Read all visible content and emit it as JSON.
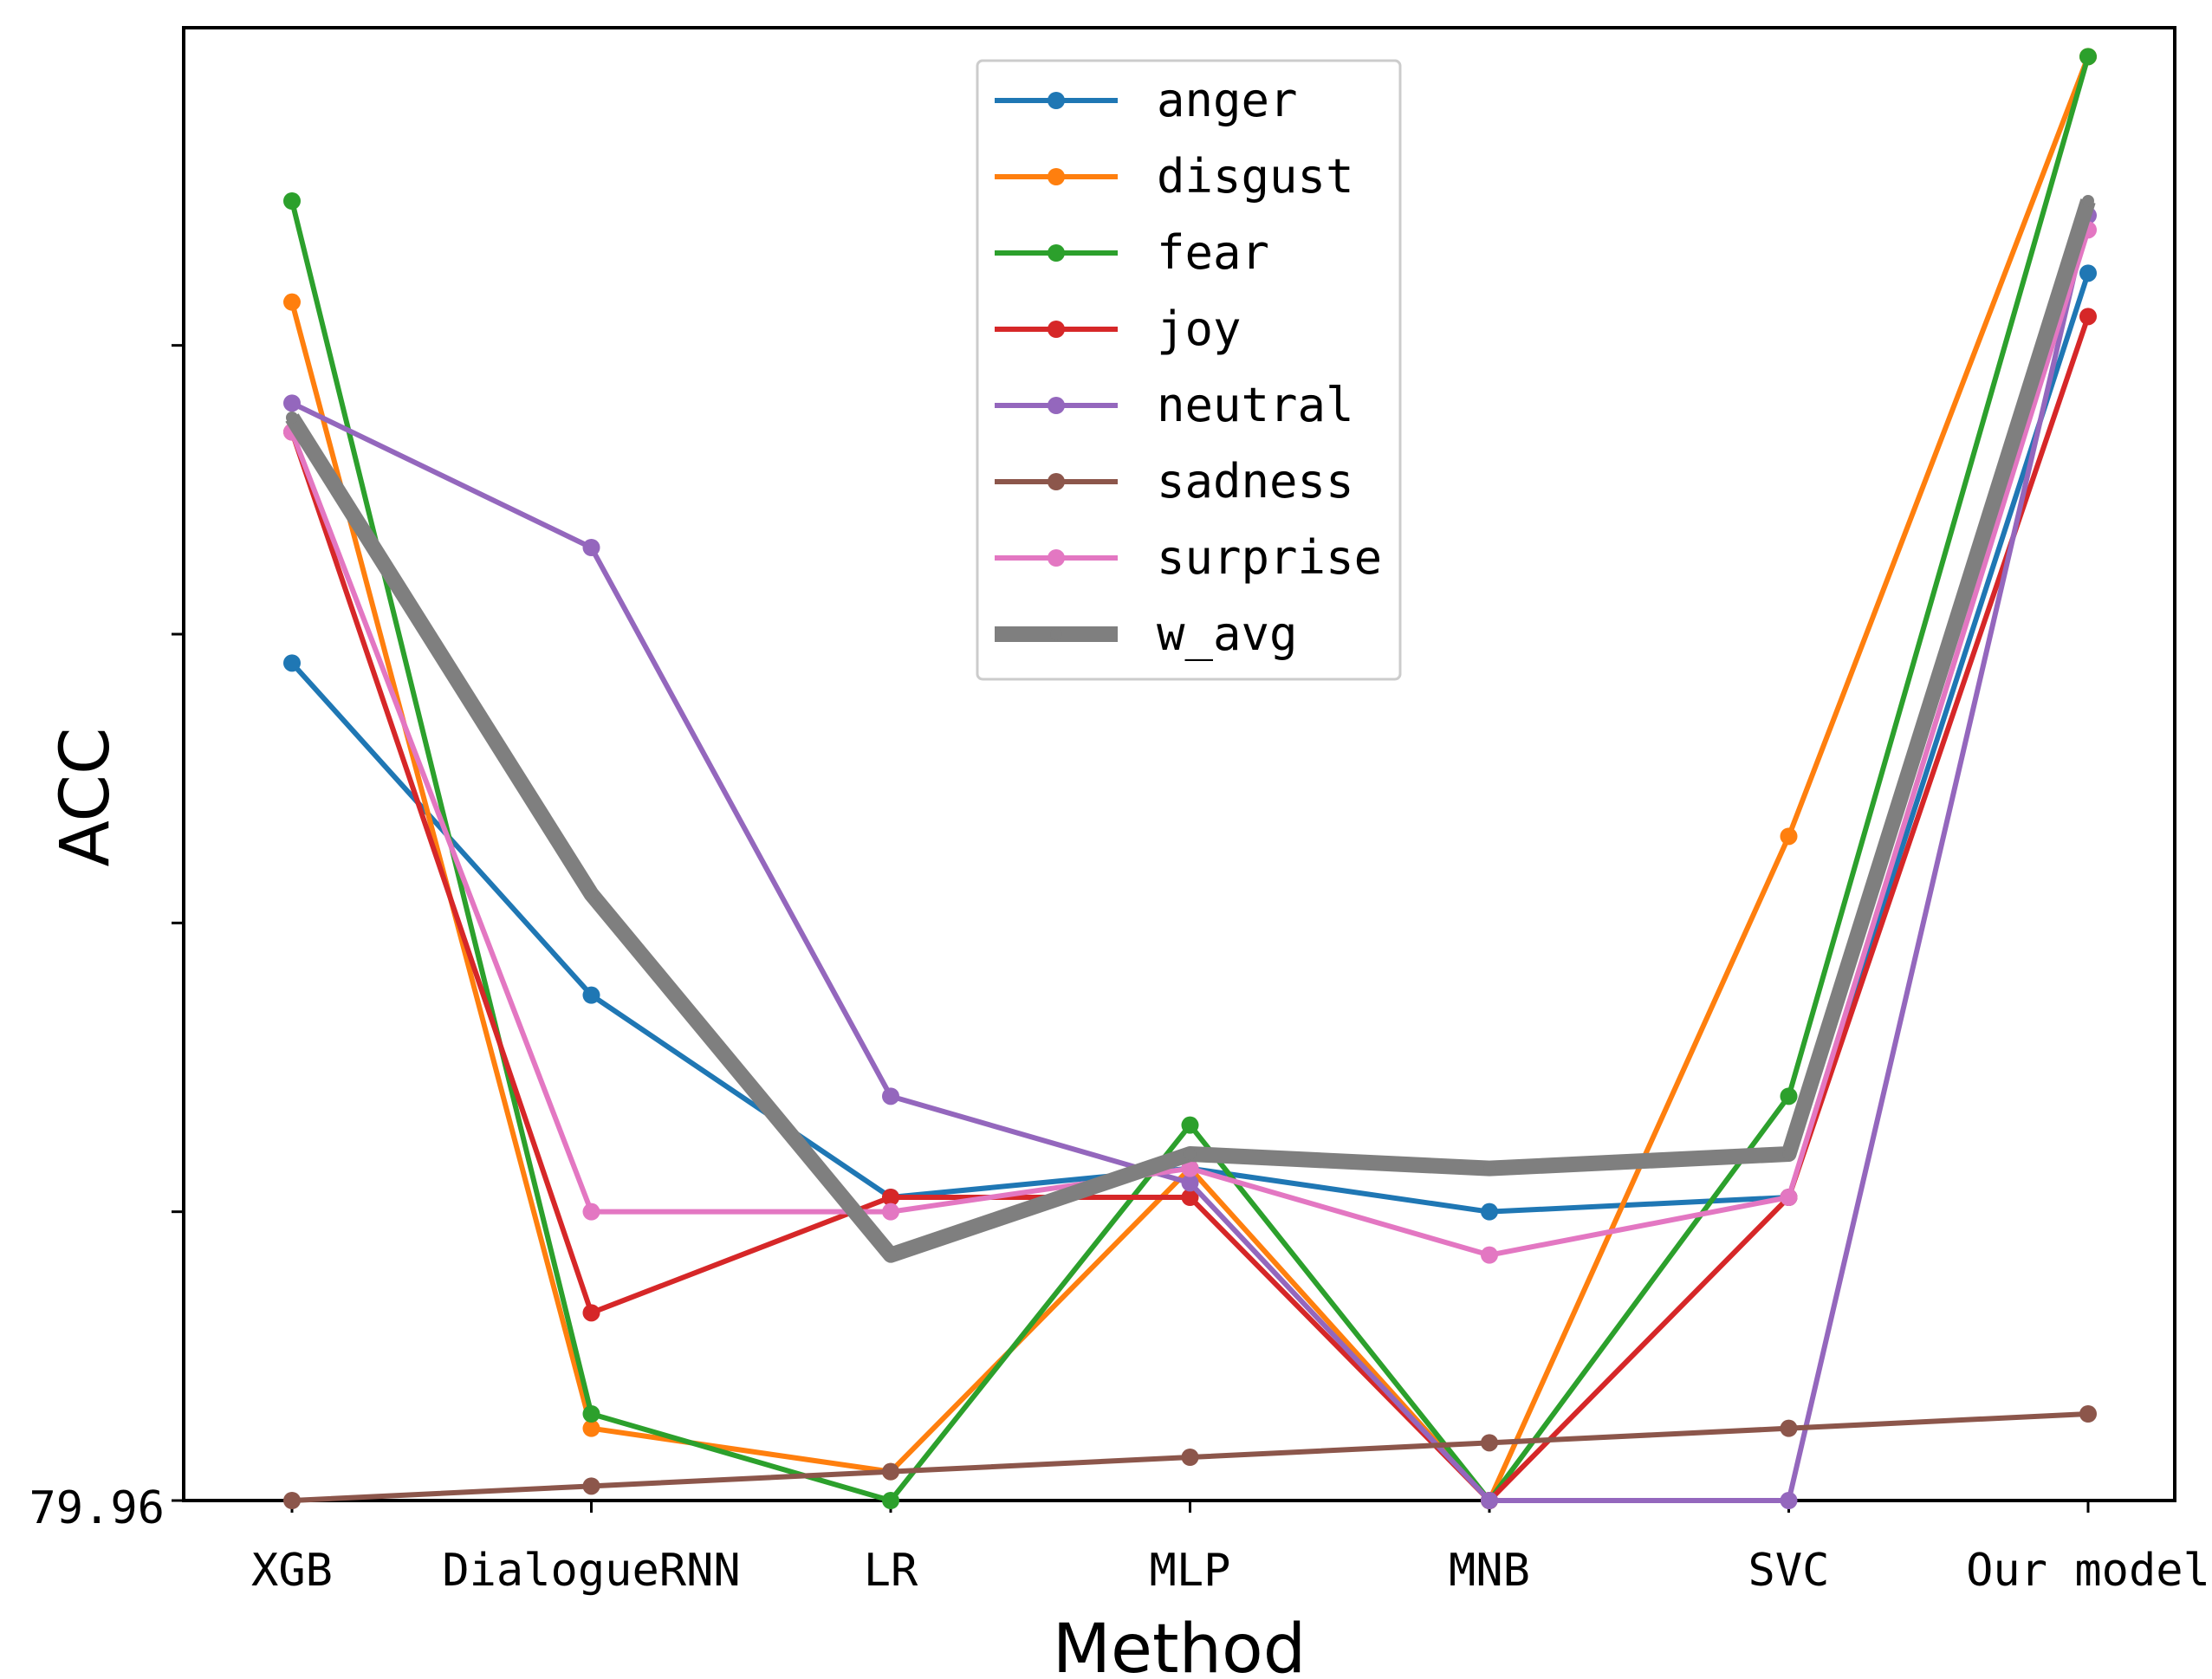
{
  "chart_data": {
    "type": "line",
    "title": "",
    "xlabel": "Method",
    "ylabel": "ACC",
    "categories": [
      "XGB",
      "DialogueRNN",
      "LR",
      "MLP",
      "MNB",
      "SVC",
      "Our model"
    ],
    "ylim": [
      79.96,
      80.98
    ],
    "y_tick_labels": [
      {
        "value": 79.96,
        "label": "79.96"
      }
    ],
    "y_ticks_unlabeled": [
      80.16,
      80.36,
      80.56,
      80.76
    ],
    "legend": {
      "placement": "top-center",
      "entries": [
        "anger",
        "disgust",
        "fear",
        "joy",
        "neutral",
        "sadness",
        "surprise",
        "w_avg"
      ]
    },
    "series": [
      {
        "name": "anger",
        "color": "#1f77b4",
        "values": [
          80.54,
          80.31,
          80.17,
          80.19,
          80.16,
          80.17,
          80.81
        ]
      },
      {
        "name": "disgust",
        "color": "#ff7f0e",
        "values": [
          80.79,
          80.01,
          79.98,
          80.19,
          79.96,
          80.42,
          80.96
        ]
      },
      {
        "name": "fear",
        "color": "#2ca02c",
        "values": [
          80.86,
          80.02,
          79.96,
          80.22,
          79.96,
          80.24,
          80.96
        ]
      },
      {
        "name": "joy",
        "color": "#d62728",
        "values": [
          80.7,
          80.09,
          80.17,
          80.17,
          79.96,
          80.17,
          80.78
        ]
      },
      {
        "name": "neutral",
        "color": "#9467bd",
        "values": [
          80.72,
          80.62,
          80.24,
          80.18,
          79.96,
          79.96,
          80.85
        ]
      },
      {
        "name": "sadness",
        "color": "#8c564b",
        "values": [
          79.96,
          79.97,
          79.98,
          79.99,
          80.0,
          80.01,
          80.02
        ]
      },
      {
        "name": "surprise",
        "color": "#e377c2",
        "values": [
          80.7,
          80.16,
          80.16,
          80.19,
          80.13,
          80.17,
          80.84
        ]
      },
      {
        "name": "w_avg",
        "color": "#7f7f7f",
        "values": [
          80.71,
          80.38,
          80.13,
          80.2,
          80.19,
          80.2,
          80.86
        ]
      }
    ]
  }
}
